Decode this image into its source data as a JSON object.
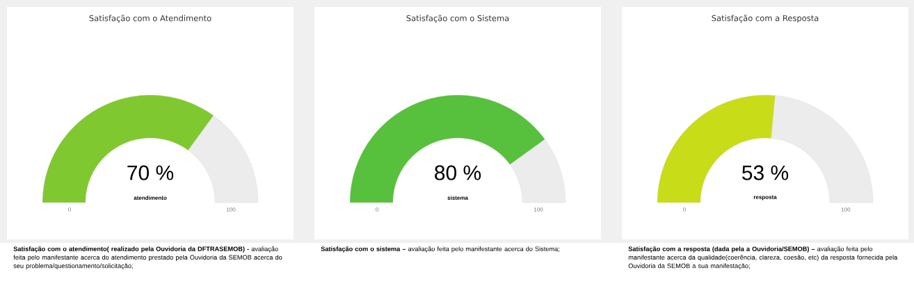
{
  "chart_data": [
    {
      "type": "donut",
      "title": "Satisfação com o Atendimento",
      "categories": [
        "atendimento",
        null
      ],
      "values": [
        70,
        30
      ],
      "colors": [
        "#80c830",
        "#ececec"
      ],
      "value_labels": [
        "70 %",
        null
      ],
      "annotations": [
        "0",
        "100",
        "**Satisfação com o atendimento( realizado pela Ouvidoria da DFTRASEMOB) -** avaliação feita pelo manifestante acerca do atendimento prestado pela Ouvidoria da SEMOB acerca do seu problema/questionamento/solicitação;"
      ]
    },
    {
      "type": "donut",
      "title": "Satisfação com o Sistema",
      "categories": [
        "sistema",
        null
      ],
      "values": [
        80,
        20
      ],
      "colors": [
        "#57c03c",
        "#ececec"
      ],
      "value_labels": [
        "80 %",
        null
      ],
      "annotations": [
        "0",
        "100",
        "**Satisfação com o sistema –** avaliação feita pelo manifestante acerca do Sistema;"
      ]
    },
    {
      "type": "donut",
      "title": "Satisfação com a Resposta",
      "categories": [
        "resposta",
        null
      ],
      "values": [
        53,
        47
      ],
      "colors": [
        "#c8dc18",
        "#ececec"
      ],
      "value_labels": [
        "53 %",
        null
      ],
      "annotations": [
        "0",
        "100",
        "**Satisfação com a resposta (dada pela a Ouvidoria/SEMOB) –** avaliação feita pelo manifestante acerca da qualidade(coerência, clareza, coesão, etc) da resposta fornecida pela Ouvidoria da SEMOB a sua manifestação;"
      ]
    }
  ]
}
